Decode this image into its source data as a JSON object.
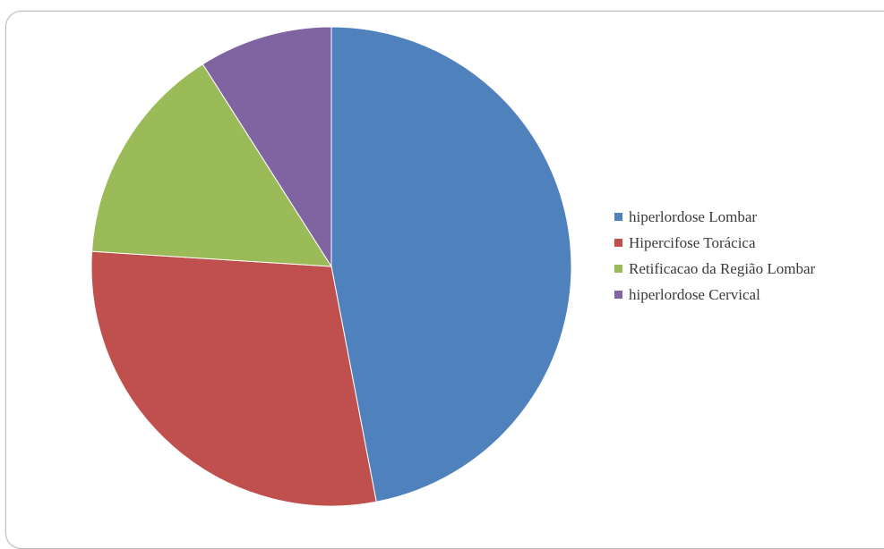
{
  "chart_data": {
    "type": "pie",
    "title": "",
    "categories": [
      "hiperlordose Lombar",
      "Hipercifose Torácica",
      "Retificacao da Região Lombar",
      "hiperlordose Cervical"
    ],
    "values": [
      47,
      29,
      15,
      9
    ],
    "colors": [
      "#4f81bd",
      "#c0504d",
      "#9bbb59",
      "#8064a2"
    ],
    "start_angle_deg": 0,
    "direction": "clockwise",
    "legend": "right"
  }
}
